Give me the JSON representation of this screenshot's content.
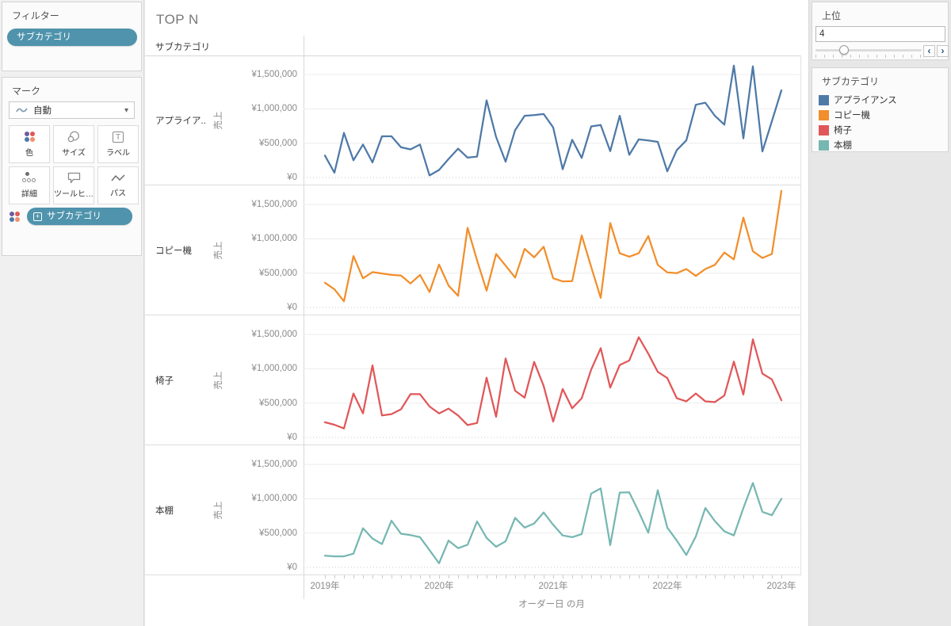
{
  "sidebar": {
    "filters": {
      "title": "フィルター",
      "pill_label": "サブカテゴリ"
    },
    "marks": {
      "title": "マーク",
      "mark_type_label": "自動",
      "buttons": [
        {
          "label": "色",
          "icon": "color-icon"
        },
        {
          "label": "サイズ",
          "icon": "size-icon"
        },
        {
          "label": "ラベル",
          "icon": "label-icon"
        },
        {
          "label": "詳細",
          "icon": "detail-icon"
        },
        {
          "label": "ツールヒ…",
          "icon": "tooltip-icon"
        },
        {
          "label": "パス",
          "icon": "path-icon"
        }
      ],
      "encoding_pill": {
        "label": "サブカテゴリ",
        "badge": "+"
      }
    },
    "color_icon_dots": [
      "#6a5fa0",
      "#e15759",
      "#4e79a7",
      "#ee8f6e"
    ]
  },
  "main": {
    "title": "TOP N",
    "column_header": "サブカテゴリ",
    "x_axis": {
      "title": "オーダー日 の月"
    },
    "y_axis": {
      "title": "売上"
    }
  },
  "right_panel": {
    "parameter": {
      "title": "上位",
      "value": "4",
      "slider_position": 0.27,
      "prev_glyph": "‹",
      "next_glyph": "›"
    },
    "legend": {
      "title": "サブカテゴリ",
      "items": [
        {
          "label": "アプライアンス",
          "color": "#4e79a7"
        },
        {
          "label": "コピー機",
          "color": "#f28e2b"
        },
        {
          "label": "椅子",
          "color": "#e15759"
        },
        {
          "label": "本棚",
          "color": "#76b7b2"
        }
      ]
    }
  },
  "icons": {
    "caret": "▾",
    "label_glyph": "T"
  },
  "chart_data": {
    "type": "line",
    "title": "TOP N",
    "small_multiples": true,
    "xlabel": "オーダー日 の月",
    "ylabel": "売上",
    "x_interval": "month",
    "x_start": "2019-01",
    "x_end": "2023-01",
    "points_per_series": 49,
    "x_year_ticks": [
      "2019年",
      "2020年",
      "2021年",
      "2022年",
      "2023年"
    ],
    "y_tick_values": [
      1500000,
      1000000,
      500000,
      0
    ],
    "y_tick_labels": [
      "¥1,500,000",
      "¥1,000,000",
      "¥500,000",
      "¥0"
    ],
    "ylim": [
      0,
      1780000
    ],
    "grid": true,
    "panels": [
      {
        "category": "アプライアンス",
        "row_label": "アプライア..",
        "color": "#4e79a7",
        "values": [
          320000,
          70000,
          650000,
          250000,
          480000,
          220000,
          600000,
          600000,
          440000,
          410000,
          480000,
          30000,
          110000,
          270000,
          420000,
          290000,
          305000,
          1125000,
          590000,
          230000,
          690000,
          900000,
          910000,
          925000,
          730000,
          120000,
          550000,
          285000,
          745000,
          765000,
          385000,
          900000,
          330000,
          555000,
          540000,
          520000,
          90000,
          400000,
          540000,
          1060000,
          1090000,
          900000,
          770000,
          1630000,
          570000,
          1620000,
          380000,
          820000,
          1270000
        ]
      },
      {
        "category": "コピー機",
        "row_label": "コピー機",
        "color": "#f28e2b",
        "values": [
          360000,
          265000,
          90000,
          750000,
          425000,
          515000,
          495000,
          475000,
          465000,
          350000,
          475000,
          225000,
          625000,
          320000,
          170000,
          1160000,
          685000,
          245000,
          780000,
          610000,
          435000,
          855000,
          730000,
          885000,
          425000,
          380000,
          385000,
          1050000,
          590000,
          140000,
          1230000,
          790000,
          740000,
          790000,
          1040000,
          620000,
          510000,
          500000,
          560000,
          460000,
          560000,
          620000,
          800000,
          700000,
          1310000,
          820000,
          720000,
          780000,
          1700000
        ]
      },
      {
        "category": "椅子",
        "row_label": "椅子",
        "color": "#e15759",
        "values": [
          220000,
          185000,
          130000,
          640000,
          350000,
          1050000,
          320000,
          340000,
          410000,
          630000,
          630000,
          450000,
          350000,
          420000,
          320000,
          180000,
          210000,
          870000,
          300000,
          1150000,
          680000,
          580000,
          1100000,
          750000,
          230000,
          705000,
          425000,
          570000,
          990000,
          1300000,
          725000,
          1055000,
          1120000,
          1460000,
          1220000,
          955000,
          865000,
          570000,
          525000,
          640000,
          525000,
          515000,
          610000,
          1105000,
          625000,
          1430000,
          930000,
          845000,
          540000
        ]
      },
      {
        "category": "本棚",
        "row_label": "本棚",
        "color": "#76b7b2",
        "values": [
          170000,
          160000,
          160000,
          200000,
          570000,
          420000,
          340000,
          680000,
          490000,
          470000,
          440000,
          250000,
          60000,
          390000,
          280000,
          330000,
          670000,
          430000,
          300000,
          380000,
          720000,
          580000,
          640000,
          800000,
          620000,
          465000,
          440000,
          485000,
          1075000,
          1150000,
          325000,
          1090000,
          1095000,
          810000,
          505000,
          1125000,
          580000,
          390000,
          180000,
          450000,
          865000,
          675000,
          525000,
          465000,
          865000,
          1230000,
          810000,
          760000,
          1000000
        ]
      }
    ]
  }
}
